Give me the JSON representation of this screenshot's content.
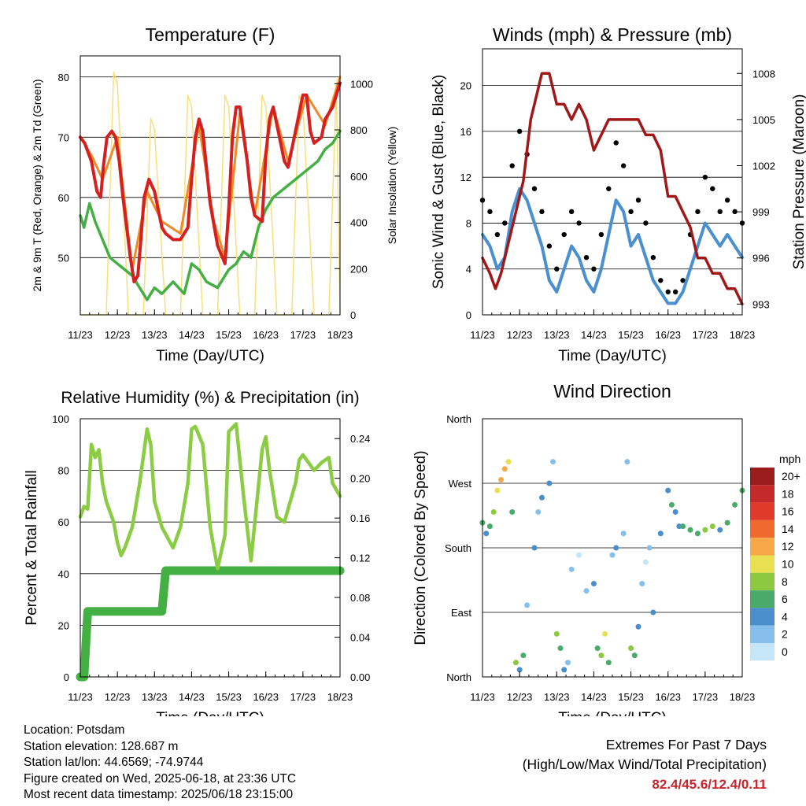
{
  "chart_data": [
    {
      "type": "line",
      "title": "Temperature (F)",
      "xlabel": "Time (Day/UTC)",
      "ylabel": "2m & 9m T (Red, Orange) & 2m Td (Green)",
      "y2label": "Solar Insolation (Yellow)",
      "x_ticks": [
        "11/23",
        "12/23",
        "13/23",
        "14/23",
        "15/23",
        "16/23",
        "17/23",
        "18/23"
      ],
      "ylim": [
        40.5,
        83.5
      ],
      "y_ticks": [
        50,
        60,
        70,
        80
      ],
      "y2lim": [
        0,
        1120
      ],
      "y2_ticks": [
        0,
        200,
        400,
        600,
        800,
        1000
      ],
      "grid": true,
      "colors": {
        "t2m": "#d42020",
        "t9m": "#f08a24",
        "td": "#44b044",
        "solar": "#f7e07a"
      },
      "series": [
        {
          "key": "t2m",
          "x": [
            0,
            0.12,
            0.3,
            0.45,
            0.55,
            0.62,
            0.72,
            0.85,
            0.95,
            1.05,
            1.15,
            1.25,
            1.35,
            1.45,
            1.55,
            1.62,
            1.72,
            1.85,
            2.0,
            2.1,
            2.2,
            2.3,
            2.5,
            2.7,
            2.9,
            3.0,
            3.1,
            3.2,
            3.3,
            3.5,
            3.7,
            3.9,
            4.0,
            4.1,
            4.2,
            4.3,
            4.5,
            4.6,
            4.7,
            4.9,
            5.0,
            5.1,
            5.2,
            5.3,
            5.5,
            5.6,
            5.7,
            5.9,
            6.0,
            6.1,
            6.2,
            6.3,
            6.5,
            6.6,
            6.8,
            7.0
          ],
          "values": [
            70,
            69,
            66,
            61,
            60,
            65,
            70,
            71,
            70,
            66,
            60,
            55,
            50,
            46,
            47,
            52,
            60,
            63,
            61,
            58,
            55,
            54,
            53,
            53,
            55,
            63,
            70,
            73,
            71,
            59,
            52,
            49,
            58,
            70,
            75,
            75,
            66,
            60,
            57,
            56,
            67,
            73,
            75,
            72,
            66,
            65,
            68,
            74,
            77,
            77,
            71,
            69,
            70,
            73,
            75,
            79
          ]
        },
        {
          "key": "t9m",
          "x": [
            0,
            0.3,
            0.6,
            1.0,
            1.4,
            1.8,
            2.2,
            2.7,
            3.2,
            3.6,
            3.9,
            4.3,
            4.7,
            5.2,
            5.6,
            6.1,
            6.6,
            7.0
          ],
          "values": [
            70,
            67,
            63,
            70,
            48,
            61,
            56,
            54,
            72,
            56,
            50,
            74,
            57,
            75,
            66,
            77,
            72,
            80
          ]
        },
        {
          "key": "td",
          "x": [
            0,
            0.1,
            0.25,
            0.4,
            0.6,
            0.8,
            1.0,
            1.2,
            1.4,
            1.6,
            1.8,
            2.0,
            2.2,
            2.5,
            2.8,
            3.0,
            3.2,
            3.4,
            3.7,
            4.0,
            4.2,
            4.4,
            4.6,
            4.8,
            5.0,
            5.2,
            5.4,
            5.6,
            5.8,
            6.0,
            6.2,
            6.4,
            6.6,
            6.8,
            7.0
          ],
          "values": [
            57,
            55,
            59,
            56,
            53,
            50,
            49,
            48,
            47,
            45,
            43,
            45,
            44,
            46,
            44,
            49,
            48,
            46,
            45,
            48,
            49,
            51,
            50,
            55,
            58,
            60,
            61,
            62,
            63,
            64,
            65,
            66,
            68,
            69,
            71
          ]
        },
        {
          "key": "solar",
          "x": [
            0,
            0.7,
            0.9,
            1.0,
            1.3,
            1.5,
            1.7,
            1.9,
            2.0,
            2.3,
            2.5,
            2.7,
            2.9,
            3.0,
            3.3,
            3.5,
            3.7,
            3.9,
            4.0,
            4.3,
            4.5,
            4.7,
            4.9,
            5.0,
            5.3,
            5.5,
            5.7,
            5.9,
            6.0,
            6.3,
            6.5,
            6.7,
            6.9,
            7.0
          ],
          "values": [
            0,
            0,
            1050,
            1000,
            0,
            0,
            0,
            850,
            800,
            0,
            0,
            0,
            950,
            900,
            0,
            0,
            0,
            950,
            900,
            0,
            0,
            0,
            950,
            900,
            0,
            0,
            0,
            950,
            900,
            0,
            0,
            0,
            1000,
            0
          ]
        }
      ]
    },
    {
      "type": "line",
      "title": "Winds (mph) & Pressure (mb)",
      "xlabel": "Time (Day/UTC)",
      "ylabel": "Sonic Wind & Gust (Blue, Black)",
      "y2label": "Station Pressure (Maroon)",
      "x_ticks": [
        "11/23",
        "12/23",
        "13/23",
        "14/23",
        "15/23",
        "16/23",
        "17/23",
        "18/23"
      ],
      "ylim": [
        0,
        23.2
      ],
      "y_ticks": [
        0,
        4,
        8,
        12,
        16,
        20
      ],
      "y2lim": [
        992.3,
        1009.6
      ],
      "y2_ticks": [
        993,
        996,
        999,
        1002,
        1005,
        1008
      ],
      "grid": true,
      "colors": {
        "wind": "#4a90d0",
        "gust": "#000000",
        "pressure": "#a01818"
      },
      "series": [
        {
          "key": "wind",
          "x": [
            0,
            0.2,
            0.4,
            0.6,
            0.8,
            1.0,
            1.2,
            1.4,
            1.6,
            1.8,
            2.0,
            2.2,
            2.4,
            2.6,
            2.8,
            3.0,
            3.2,
            3.4,
            3.6,
            3.8,
            4.0,
            4.2,
            4.4,
            4.6,
            4.8,
            5.0,
            5.2,
            5.4,
            5.6,
            5.8,
            6.0,
            6.2,
            6.4,
            6.6,
            6.8,
            7.0
          ],
          "values": [
            7,
            6,
            4,
            5,
            9,
            11,
            10,
            8,
            6,
            3,
            2,
            4,
            6,
            5,
            3,
            2,
            4,
            7,
            10,
            9,
            6,
            7,
            5,
            3,
            2,
            1,
            1,
            2,
            4,
            6,
            8,
            7,
            6,
            7,
            6,
            5
          ]
        },
        {
          "key": "gust",
          "x": [
            0,
            0.2,
            0.4,
            0.6,
            0.8,
            1.0,
            1.2,
            1.4,
            1.6,
            1.8,
            2.0,
            2.2,
            2.4,
            2.6,
            2.8,
            3.0,
            3.2,
            3.4,
            3.6,
            3.8,
            4.0,
            4.2,
            4.4,
            4.6,
            4.8,
            5.0,
            5.2,
            5.4,
            5.6,
            5.8,
            6.0,
            6.2,
            6.4,
            6.6,
            6.8,
            7.0
          ],
          "values": [
            10,
            9,
            7,
            8,
            13,
            16,
            14,
            11,
            9,
            6,
            4,
            7,
            9,
            8,
            5,
            4,
            7,
            11,
            15,
            13,
            9,
            10,
            8,
            5,
            3,
            2,
            2,
            3,
            7,
            9,
            12,
            11,
            9,
            10,
            9,
            8
          ]
        },
        {
          "key": "pressure",
          "x": [
            0,
            0.2,
            0.35,
            0.5,
            0.7,
            0.9,
            1.1,
            1.3,
            1.5,
            1.6,
            1.8,
            1.9,
            2.0,
            2.2,
            2.4,
            2.6,
            2.8,
            3.0,
            3.2,
            3.4,
            3.6,
            3.8,
            4.0,
            4.2,
            4.4,
            4.6,
            4.8,
            5.0,
            5.2,
            5.4,
            5.6,
            5.8,
            6.0,
            6.2,
            6.4,
            6.6,
            6.8,
            7.0
          ],
          "values": [
            996,
            995,
            994,
            995,
            997,
            999,
            1001,
            1005,
            1007,
            1008,
            1008,
            1007,
            1006,
            1006,
            1005,
            1006,
            1005,
            1003,
            1004,
            1005,
            1005,
            1005,
            1005,
            1005,
            1004,
            1004,
            1003,
            1000,
            1000,
            999,
            998,
            996,
            996,
            995,
            995,
            994,
            994,
            993
          ]
        }
      ]
    },
    {
      "type": "line",
      "title": "Relative Humidity (%) & Precipitation (in)",
      "xlabel": "Time (Day/UTC)",
      "ylabel": "Percent & Total Rainfall",
      "x_ticks": [
        "11/23",
        "12/23",
        "13/23",
        "14/23",
        "15/23",
        "16/23",
        "17/23",
        "18/23"
      ],
      "ylim": [
        0,
        100
      ],
      "y_ticks": [
        0,
        20,
        40,
        60,
        80,
        100
      ],
      "y2lim": [
        0,
        0.26
      ],
      "y2_ticks": [
        "0.00",
        "0.04",
        "0.08",
        "0.12",
        "0.16",
        "0.20",
        "0.24"
      ],
      "grid": true,
      "colors": {
        "rh": "#8ccc44",
        "precip": "#44b044"
      },
      "series": [
        {
          "key": "rh",
          "x": [
            0,
            0.1,
            0.2,
            0.3,
            0.4,
            0.5,
            0.6,
            0.7,
            0.9,
            1.0,
            1.1,
            1.2,
            1.4,
            1.6,
            1.8,
            1.9,
            2.0,
            2.2,
            2.5,
            2.7,
            2.9,
            3.0,
            3.1,
            3.3,
            3.5,
            3.7,
            3.9,
            4.0,
            4.2,
            4.4,
            4.6,
            4.9,
            5.0,
            5.1,
            5.3,
            5.5,
            5.8,
            5.9,
            6.0,
            6.3,
            6.5,
            6.7,
            6.8,
            7.0
          ],
          "values": [
            62,
            66,
            65,
            90,
            85,
            88,
            75,
            68,
            60,
            52,
            47,
            50,
            58,
            75,
            96,
            90,
            68,
            58,
            50,
            58,
            75,
            96,
            97,
            90,
            58,
            42,
            55,
            95,
            98,
            70,
            45,
            88,
            93,
            80,
            62,
            60,
            75,
            84,
            86,
            80,
            83,
            85,
            75,
            70
          ]
        },
        {
          "key": "precip",
          "x": [
            0,
            0.1,
            0.2,
            0.3,
            1.5,
            2.2,
            2.3,
            3.0,
            4.0,
            5.0,
            6.0,
            7.0
          ],
          "values": [
            0.0,
            0.0,
            0.066,
            0.066,
            0.066,
            0.066,
            0.107,
            0.107,
            0.107,
            0.107,
            0.107,
            0.107
          ]
        }
      ]
    },
    {
      "type": "scatter",
      "title": "Wind Direction",
      "xlabel": "Time (Day/UTC)",
      "ylabel": "Direction (Colored By Speed)",
      "x_ticks": [
        "11/23",
        "12/23",
        "13/23",
        "14/23",
        "15/23",
        "16/23",
        "17/23",
        "18/23"
      ],
      "y_ticks": [
        "North",
        "East",
        "South",
        "West",
        "North"
      ],
      "ylim": [
        0,
        360
      ],
      "grid": true,
      "legend": {
        "title": "mph",
        "placement": "right",
        "labels": [
          "20+",
          "18",
          "16",
          "14",
          "12",
          "10",
          "8",
          "6",
          "4",
          "2",
          "0"
        ],
        "colors": [
          "#9b1c1c",
          "#c42a2a",
          "#e03a2a",
          "#f06a30",
          "#f8a848",
          "#e8e050",
          "#8cc840",
          "#4aaa6a",
          "#4a8ecc",
          "#86c0ea",
          "#c4e6f8"
        ]
      },
      "series": [
        {
          "name": "direction",
          "x": [
            0,
            0.1,
            0.2,
            0.3,
            0.4,
            0.5,
            0.6,
            0.7,
            0.8,
            0.9,
            1.0,
            1.1,
            1.2,
            1.4,
            1.5,
            1.6,
            1.8,
            1.9,
            2.0,
            2.1,
            2.2,
            2.3,
            2.4,
            2.6,
            2.8,
            3.0,
            3.1,
            3.2,
            3.3,
            3.4,
            3.5,
            3.6,
            3.8,
            3.9,
            4.0,
            4.1,
            4.2,
            4.3,
            4.4,
            4.5,
            4.6,
            4.8,
            5.0,
            5.1,
            5.2,
            5.3,
            5.4,
            5.6,
            5.8,
            6.0,
            6.2,
            6.4,
            6.6,
            6.8,
            7.0
          ],
          "values": [
            215,
            200,
            210,
            230,
            260,
            275,
            290,
            300,
            230,
            20,
            10,
            30,
            100,
            180,
            230,
            250,
            270,
            300,
            60,
            40,
            10,
            20,
            150,
            170,
            120,
            130,
            40,
            30,
            60,
            20,
            170,
            180,
            200,
            300,
            40,
            30,
            70,
            130,
            160,
            180,
            90,
            200,
            260,
            240,
            230,
            210,
            210,
            205,
            200,
            205,
            210,
            205,
            215,
            240,
            260
          ],
          "speeds": [
            6,
            4,
            6,
            8,
            10,
            12,
            12,
            10,
            6,
            8,
            4,
            6,
            2,
            4,
            2,
            4,
            4,
            2,
            8,
            6,
            4,
            2,
            2,
            0,
            2,
            4,
            6,
            8,
            10,
            6,
            2,
            4,
            2,
            2,
            8,
            6,
            4,
            2,
            0,
            2,
            4,
            4,
            4,
            6,
            4,
            4,
            6,
            6,
            6,
            8,
            8,
            4,
            6,
            6,
            6
          ]
        }
      ]
    }
  ],
  "info": {
    "location": "Location: Potsdam",
    "elevation": "Station elevation: 128.687 m",
    "latlon": "Station lat/lon: 44.6569; -74.9744",
    "created": "Figure created on Wed, 2025-06-18, at 23:36 UTC",
    "timestamp": "Most recent data timestamp: 2025/06/18 23:15:00"
  },
  "extremes": {
    "title": "Extremes For Past 7 Days",
    "subtitle": "(High/Low/Max Wind/Total Precipitation)",
    "values": "82.4/45.6/12.4/0.11"
  }
}
